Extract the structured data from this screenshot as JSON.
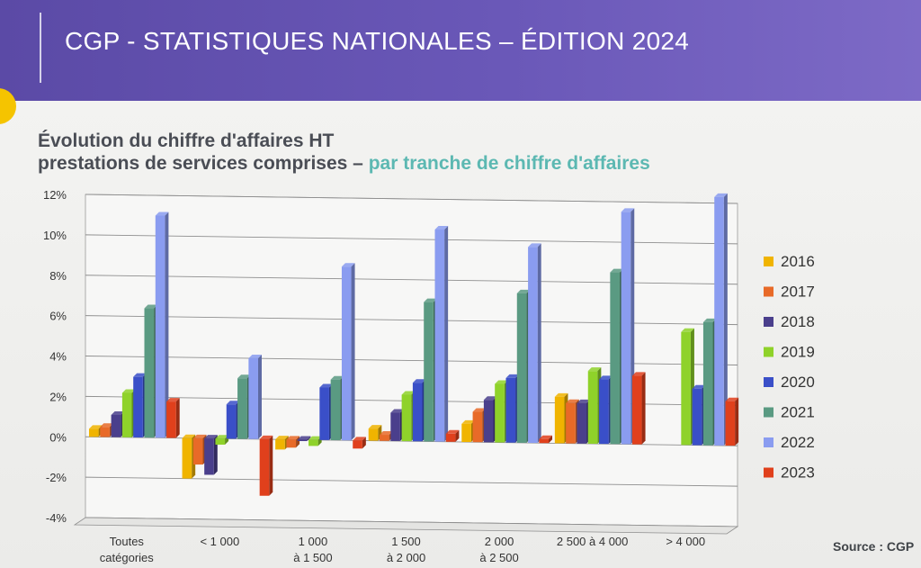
{
  "banner": {
    "title": "CGP - STATISTIQUES NATIONALES – ÉDITION 2024"
  },
  "heading": {
    "line1": "Évolution du chiffre d'affaires HT",
    "line2_main": "prestations de services comprises – ",
    "line2_accent": "par tranche de chiffre d'affaires"
  },
  "source": "Source : CGP",
  "colors": {
    "banner": "#6555b0",
    "accent": "#5cb8b2",
    "2016": "#f0b400",
    "2017": "#e86a28",
    "2018": "#4a3f8c",
    "2019": "#8fd22a",
    "2020": "#3a4fc8",
    "2021": "#5a9a82",
    "2022": "#8a9cf0",
    "2023": "#e0401c"
  },
  "chart_data": {
    "type": "bar",
    "categories": [
      [
        "Toutes",
        "catégories"
      ],
      [
        "< 1 000"
      ],
      [
        "1 000",
        "à 1 500"
      ],
      [
        "1 500",
        "à 2 000"
      ],
      [
        "2 000",
        "à 2 500"
      ],
      [
        "2 500 à 4 000"
      ],
      [
        "> 4 000"
      ]
    ],
    "series": [
      {
        "name": "2016",
        "values": [
          0.4,
          -2.0,
          -0.5,
          0.6,
          0.9,
          2.3,
          null
        ]
      },
      {
        "name": "2017",
        "values": [
          0.5,
          -1.3,
          -0.4,
          0.3,
          1.5,
          2.0,
          null
        ]
      },
      {
        "name": "2018",
        "values": [
          1.1,
          -1.8,
          0.0,
          1.4,
          2.1,
          2.0,
          null
        ]
      },
      {
        "name": "2019",
        "values": [
          2.2,
          -0.3,
          -0.3,
          2.3,
          2.9,
          3.6,
          5.6
        ]
      },
      {
        "name": "2020",
        "values": [
          3.0,
          1.7,
          2.6,
          2.9,
          3.2,
          3.2,
          2.8
        ]
      },
      {
        "name": "2021",
        "values": [
          6.4,
          3.0,
          3.0,
          6.9,
          7.4,
          8.5,
          6.1
        ]
      },
      {
        "name": "2022",
        "values": [
          11.0,
          4.0,
          8.6,
          10.5,
          9.7,
          11.5,
          12.3
        ]
      },
      {
        "name": "2023",
        "values": [
          1.8,
          -2.8,
          -0.4,
          0.4,
          0.2,
          3.4,
          2.2
        ]
      }
    ],
    "y_ticks": [
      "12%",
      "10%",
      "8%",
      "6%",
      "4%",
      "2%",
      "0%",
      "-2%",
      "-4%"
    ],
    "ylim": [
      -4,
      12
    ],
    "grid": true,
    "legend_position": "right"
  }
}
